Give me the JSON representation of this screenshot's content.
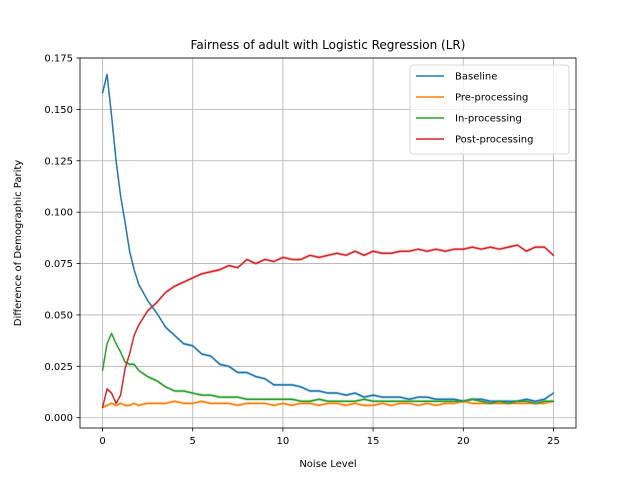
{
  "chart_data": {
    "type": "line",
    "title": "Fairness of adult with Logistic Regression (LR)",
    "xlabel": "Noise Level",
    "ylabel": "Difference of Demographic Parity",
    "xlim": [
      -1.25,
      26.25
    ],
    "ylim": [
      -0.005,
      0.175
    ],
    "xticks": [
      0,
      5,
      10,
      15,
      20,
      25
    ],
    "xtick_labels": [
      "0",
      "5",
      "10",
      "15",
      "20",
      "25"
    ],
    "yticks": [
      0.0,
      0.025,
      0.05,
      0.075,
      0.1,
      0.125,
      0.15,
      0.175
    ],
    "ytick_labels": [
      "0.000",
      "0.025",
      "0.050",
      "0.075",
      "0.100",
      "0.125",
      "0.150",
      "0.175"
    ],
    "grid": true,
    "legend_position": "top-right",
    "x": [
      0,
      0.25,
      0.5,
      0.75,
      1,
      1.25,
      1.5,
      1.75,
      2,
      2.5,
      3,
      3.5,
      4,
      4.5,
      5,
      5.5,
      6,
      6.5,
      7,
      7.5,
      8,
      8.5,
      9,
      9.5,
      10,
      10.5,
      11,
      11.5,
      12,
      12.5,
      13,
      13.5,
      14,
      14.5,
      15,
      15.5,
      16,
      16.5,
      17,
      17.5,
      18,
      18.5,
      19,
      19.5,
      20,
      20.5,
      21,
      21.5,
      22,
      22.5,
      23,
      23.5,
      24,
      24.5,
      25
    ],
    "series": [
      {
        "name": "Baseline",
        "color": "#1f77b4",
        "values": [
          0.158,
          0.167,
          0.147,
          0.125,
          0.108,
          0.095,
          0.081,
          0.072,
          0.065,
          0.057,
          0.051,
          0.044,
          0.04,
          0.036,
          0.035,
          0.031,
          0.03,
          0.026,
          0.025,
          0.022,
          0.022,
          0.02,
          0.019,
          0.016,
          0.016,
          0.016,
          0.015,
          0.013,
          0.013,
          0.012,
          0.012,
          0.011,
          0.012,
          0.01,
          0.011,
          0.01,
          0.01,
          0.01,
          0.009,
          0.01,
          0.01,
          0.009,
          0.009,
          0.009,
          0.008,
          0.009,
          0.009,
          0.008,
          0.008,
          0.008,
          0.008,
          0.009,
          0.008,
          0.009,
          0.012
        ]
      },
      {
        "name": "Pre-processing",
        "color": "#ff7f0e",
        "values": [
          0.005,
          0.006,
          0.007,
          0.006,
          0.007,
          0.006,
          0.006,
          0.007,
          0.006,
          0.007,
          0.007,
          0.007,
          0.008,
          0.007,
          0.007,
          0.008,
          0.007,
          0.007,
          0.007,
          0.006,
          0.007,
          0.007,
          0.007,
          0.006,
          0.007,
          0.006,
          0.007,
          0.007,
          0.006,
          0.007,
          0.007,
          0.006,
          0.007,
          0.006,
          0.006,
          0.007,
          0.006,
          0.007,
          0.007,
          0.006,
          0.007,
          0.006,
          0.007,
          0.007,
          0.008,
          0.007,
          0.007,
          0.007,
          0.007,
          0.007,
          0.007,
          0.007,
          0.007,
          0.007,
          0.008
        ]
      },
      {
        "name": "In-processing",
        "color": "#2ca02c",
        "values": [
          0.023,
          0.036,
          0.041,
          0.036,
          0.032,
          0.027,
          0.026,
          0.026,
          0.023,
          0.02,
          0.018,
          0.015,
          0.013,
          0.013,
          0.012,
          0.011,
          0.011,
          0.01,
          0.01,
          0.01,
          0.009,
          0.009,
          0.009,
          0.009,
          0.009,
          0.009,
          0.008,
          0.008,
          0.009,
          0.008,
          0.008,
          0.008,
          0.008,
          0.009,
          0.008,
          0.008,
          0.008,
          0.008,
          0.008,
          0.008,
          0.008,
          0.008,
          0.008,
          0.008,
          0.008,
          0.009,
          0.008,
          0.007,
          0.008,
          0.007,
          0.008,
          0.008,
          0.007,
          0.008,
          0.008
        ]
      },
      {
        "name": "Post-processing",
        "color": "#d62728",
        "values": [
          0.005,
          0.014,
          0.012,
          0.007,
          0.011,
          0.024,
          0.031,
          0.04,
          0.045,
          0.052,
          0.056,
          0.061,
          0.064,
          0.066,
          0.068,
          0.07,
          0.071,
          0.072,
          0.074,
          0.073,
          0.077,
          0.075,
          0.077,
          0.076,
          0.078,
          0.077,
          0.077,
          0.079,
          0.078,
          0.079,
          0.08,
          0.079,
          0.081,
          0.079,
          0.081,
          0.08,
          0.08,
          0.081,
          0.081,
          0.082,
          0.081,
          0.082,
          0.081,
          0.082,
          0.082,
          0.083,
          0.082,
          0.083,
          0.082,
          0.083,
          0.084,
          0.081,
          0.083,
          0.083,
          0.079
        ]
      }
    ]
  }
}
